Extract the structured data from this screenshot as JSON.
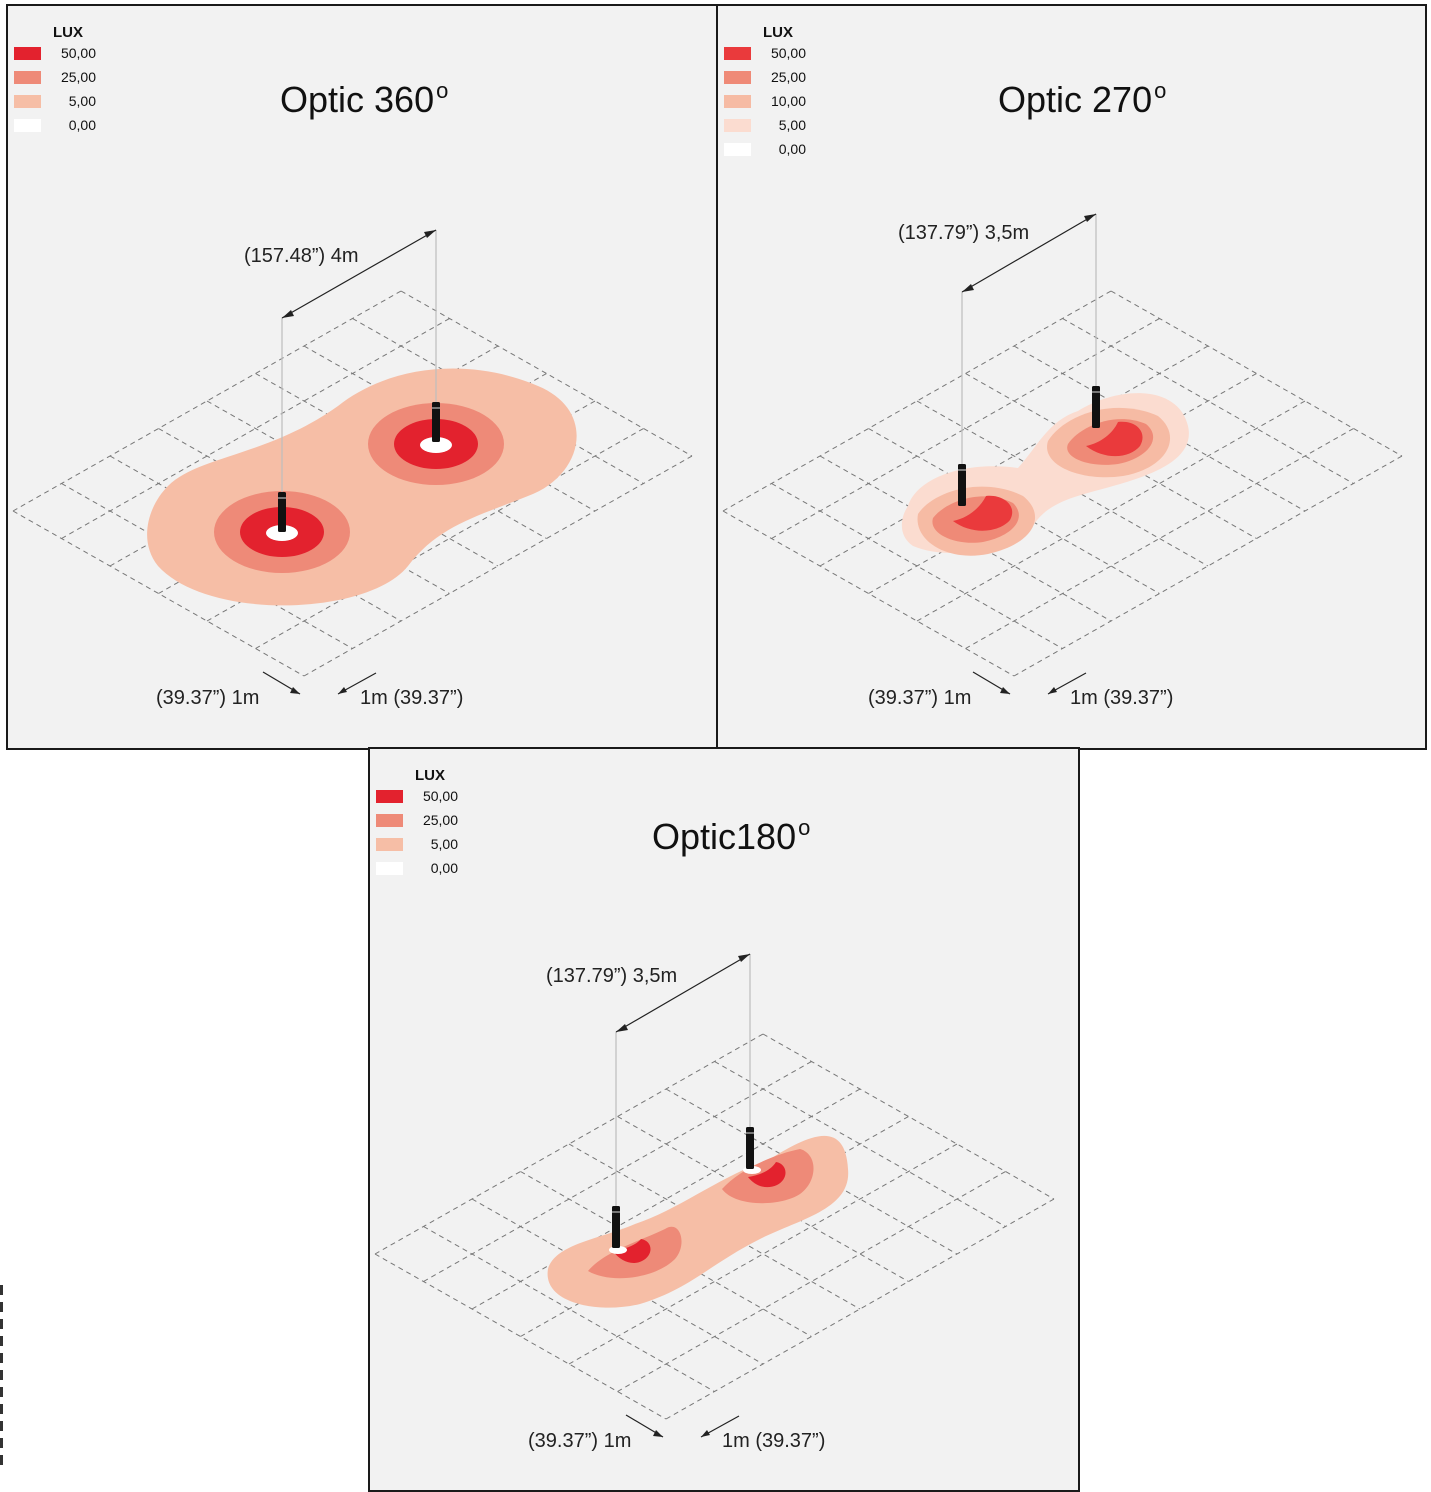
{
  "panels": {
    "p360": {
      "title": "Optic 360",
      "title_sup": "o",
      "legend_title": "LUX",
      "legend": [
        {
          "value": "50,00",
          "color": "#e3222e"
        },
        {
          "value": "25,00",
          "color": "#ee8a78"
        },
        {
          "value": "5,00",
          "color": "#f6bea6"
        },
        {
          "value": "0,00",
          "color": "#ffffff"
        }
      ],
      "spacing_label": "(157.48”)  4m",
      "grid_label_left": "(39.37”)  1m",
      "grid_label_right": "1m  (39.37”)"
    },
    "p270": {
      "title": "Optic 270",
      "title_sup": "o",
      "legend_title": "LUX",
      "legend": [
        {
          "value": "50,00",
          "color": "#ea3a3c"
        },
        {
          "value": "25,00",
          "color": "#ef8a77"
        },
        {
          "value": "10,00",
          "color": "#f6bba4"
        },
        {
          "value": "5,00",
          "color": "#fbdcd0"
        },
        {
          "value": "0,00",
          "color": "#ffffff"
        }
      ],
      "spacing_label": "(137.79”)  3,5m",
      "grid_label_left": "(39.37”)  1m",
      "grid_label_right": "1m  (39.37”)"
    },
    "p180": {
      "title": "Optic180",
      "title_sup": "o",
      "legend_title": "LUX",
      "legend": [
        {
          "value": "50,00",
          "color": "#e3222e"
        },
        {
          "value": "25,00",
          "color": "#ee8a78"
        },
        {
          "value": "5,00",
          "color": "#f6bea6"
        },
        {
          "value": "0,00",
          "color": "#ffffff"
        }
      ],
      "spacing_label": "(137.79”)  3,5m",
      "grid_label_left": "(39.37”)  1m",
      "grid_label_right": "1m (39.37”)"
    }
  }
}
